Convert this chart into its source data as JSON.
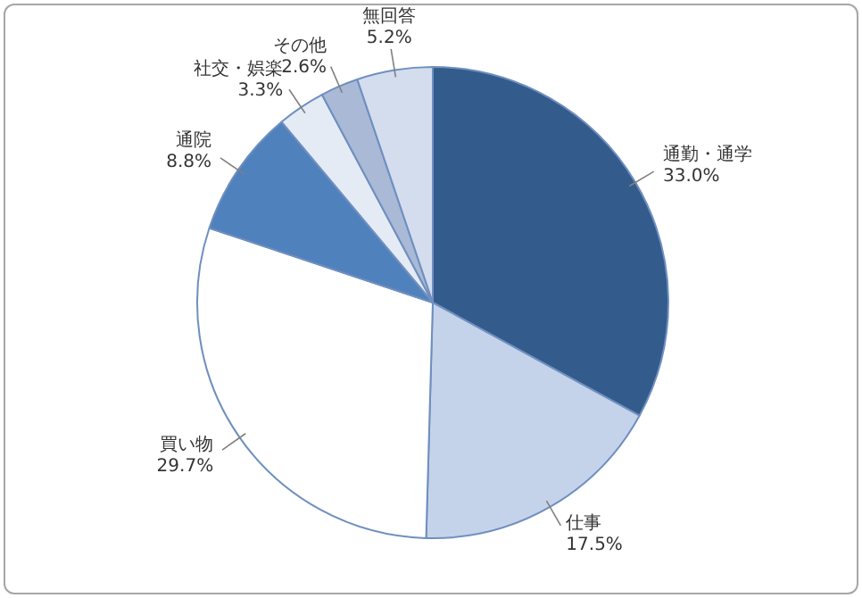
{
  "chart_data": {
    "type": "pie",
    "categories": [
      "通勤・通学",
      "仕事",
      "買い物",
      "通院",
      "社交・娯楽",
      "その他",
      "無回答"
    ],
    "values": [
      33.0,
      17.5,
      29.7,
      8.8,
      3.3,
      2.6,
      5.2
    ],
    "value_labels": [
      "33.0%",
      "17.5%",
      "29.7%",
      "8.8%",
      "3.3%",
      "2.6%",
      "5.2%"
    ],
    "colors": [
      "#335b8c",
      "#c5d3ea",
      "#ffffff",
      "#4f81bd",
      "#e4ebf5",
      "#a9b9d6",
      "#d3ddee"
    ],
    "legend": false
  }
}
